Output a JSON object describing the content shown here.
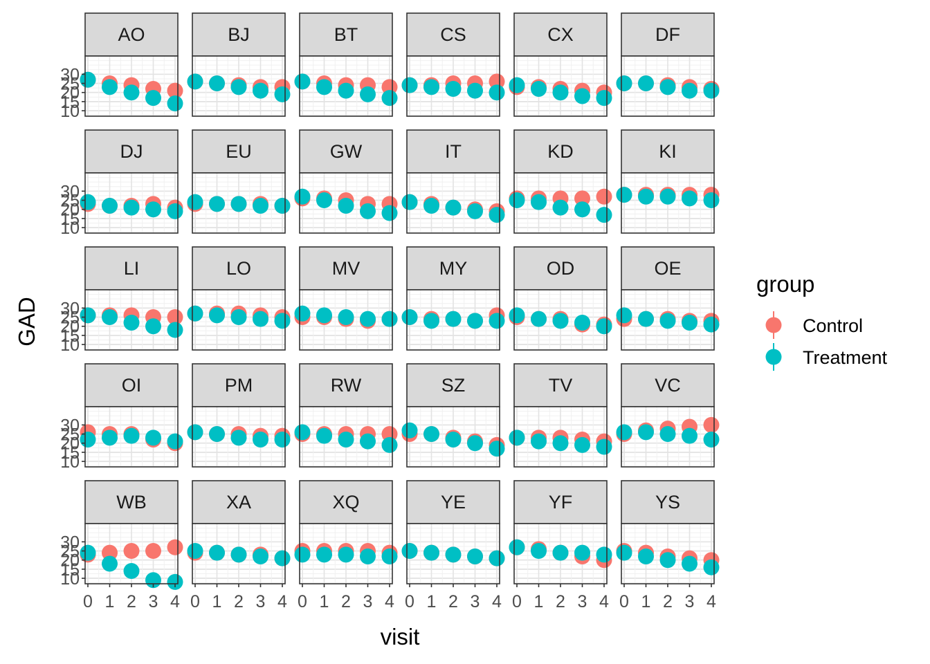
{
  "chart_data": {
    "type": "scatter",
    "xlabel": "visit",
    "ylabel": "GAD",
    "x": [
      0,
      1,
      2,
      3,
      4
    ],
    "x_ticks": [
      "0",
      "1",
      "2",
      "3",
      "4"
    ],
    "y_ticks": [
      "10",
      "15",
      "20",
      "25",
      "30"
    ],
    "ylim": [
      7,
      40
    ],
    "grid": true,
    "legend": {
      "title": "group",
      "position": "right",
      "entries": [
        {
          "name": "Control",
          "color": "#F8766D"
        },
        {
          "name": "Treatment",
          "color": "#00BFC4"
        }
      ]
    },
    "panels": [
      {
        "label": "AO",
        "series": [
          {
            "name": "Control",
            "values": [
              27,
              25,
              24,
              22,
              21
            ]
          },
          {
            "name": "Treatment",
            "values": [
              27,
              23,
              20,
              17,
              14
            ]
          }
        ]
      },
      {
        "label": "BJ",
        "series": [
          {
            "name": "Control",
            "values": [
              26,
              25,
              24,
              23,
              23
            ]
          },
          {
            "name": "Treatment",
            "values": [
              26,
              25,
              23,
              21,
              19
            ]
          }
        ]
      },
      {
        "label": "BT",
        "series": [
          {
            "name": "Control",
            "values": [
              26,
              25,
              24,
              24,
              23
            ]
          },
          {
            "name": "Treatment",
            "values": [
              26,
              23,
              21,
              19,
              17
            ]
          }
        ]
      },
      {
        "label": "CS",
        "series": [
          {
            "name": "Control",
            "values": [
              24,
              24,
              25,
              25,
              26
            ]
          },
          {
            "name": "Treatment",
            "values": [
              24,
              23,
              22,
              21,
              20
            ]
          }
        ]
      },
      {
        "label": "CX",
        "series": [
          {
            "name": "Control",
            "values": [
              23,
              23,
              22,
              21,
              20
            ]
          },
          {
            "name": "Treatment",
            "values": [
              24,
              22,
              20,
              18,
              17
            ]
          }
        ]
      },
      {
        "label": "DF",
        "series": [
          {
            "name": "Control",
            "values": [
              25,
              25,
              24,
              23,
              22
            ]
          },
          {
            "name": "Treatment",
            "values": [
              25,
              25,
              23,
              21,
              21
            ]
          }
        ]
      },
      {
        "label": "DJ",
        "series": [
          {
            "name": "Control",
            "values": [
              23,
              22,
              22,
              23,
              21
            ]
          },
          {
            "name": "Treatment",
            "values": [
              24,
              22,
              21,
              20,
              19
            ]
          }
        ]
      },
      {
        "label": "EU",
        "series": [
          {
            "name": "Control",
            "values": [
              23,
              23,
              23,
              23,
              22
            ]
          },
          {
            "name": "Treatment",
            "values": [
              24,
              23,
              23,
              22,
              22
            ]
          }
        ]
      },
      {
        "label": "GW",
        "series": [
          {
            "name": "Control",
            "values": [
              26,
              26,
              25,
              23,
              23
            ]
          },
          {
            "name": "Treatment",
            "values": [
              27,
              25,
              22,
              19,
              18
            ]
          }
        ]
      },
      {
        "label": "IT",
        "series": [
          {
            "name": "Control",
            "values": [
              24,
              23,
              21,
              20,
              19
            ]
          },
          {
            "name": "Treatment",
            "values": [
              24,
              22,
              21,
              19,
              17
            ]
          }
        ]
      },
      {
        "label": "KD",
        "series": [
          {
            "name": "Control",
            "values": [
              26,
              26,
              26,
              26,
              27
            ]
          },
          {
            "name": "Treatment",
            "values": [
              25,
              24,
              21,
              20,
              17
            ]
          }
        ]
      },
      {
        "label": "KI",
        "series": [
          {
            "name": "Control",
            "values": [
              28,
              28,
              28,
              28,
              28
            ]
          },
          {
            "name": "Treatment",
            "values": [
              28,
              27,
              27,
              26,
              25
            ]
          }
        ]
      },
      {
        "label": "LI",
        "series": [
          {
            "name": "Control",
            "values": [
              26,
              26,
              26,
              25,
              25
            ]
          },
          {
            "name": "Treatment",
            "values": [
              26,
              25,
              22,
              20,
              18
            ]
          }
        ]
      },
      {
        "label": "LO",
        "series": [
          {
            "name": "Control",
            "values": [
              27,
              27,
              27,
              26,
              25
            ]
          },
          {
            "name": "Treatment",
            "values": [
              27,
              26,
              25,
              24,
              23
            ]
          }
        ]
      },
      {
        "label": "MV",
        "series": [
          {
            "name": "Control",
            "values": [
              25,
              25,
              24,
              23,
              24
            ]
          },
          {
            "name": "Treatment",
            "values": [
              27,
              26,
              25,
              24,
              24
            ]
          }
        ]
      },
      {
        "label": "MY",
        "series": [
          {
            "name": "Control",
            "values": [
              25,
              24,
              24,
              23,
              26
            ]
          },
          {
            "name": "Treatment",
            "values": [
              25,
              23,
              24,
              23,
              23
            ]
          }
        ]
      },
      {
        "label": "OD",
        "series": [
          {
            "name": "Control",
            "values": [
              25,
              24,
              24,
              21,
              21
            ]
          },
          {
            "name": "Treatment",
            "values": [
              26,
              24,
              23,
              22,
              20
            ]
          }
        ]
      },
      {
        "label": "OE",
        "series": [
          {
            "name": "Control",
            "values": [
              24,
              24,
              24,
              23,
              23
            ]
          },
          {
            "name": "Treatment",
            "values": [
              26,
              24,
              23,
              22,
              21
            ]
          }
        ]
      },
      {
        "label": "OI",
        "series": [
          {
            "name": "Control",
            "values": [
              26,
              25,
              25,
              22,
              20
            ]
          },
          {
            "name": "Treatment",
            "values": [
              22,
              23,
              24,
              23,
              21
            ]
          }
        ]
      },
      {
        "label": "PM",
        "series": [
          {
            "name": "Control",
            "values": [
              26,
              25,
              25,
              24,
              24
            ]
          },
          {
            "name": "Treatment",
            "values": [
              26,
              25,
              23,
              22,
              22
            ]
          }
        ]
      },
      {
        "label": "RW",
        "series": [
          {
            "name": "Control",
            "values": [
              25,
              25,
              25,
              25,
              25
            ]
          },
          {
            "name": "Treatment",
            "values": [
              26,
              24,
              22,
              21,
              19
            ]
          }
        ]
      },
      {
        "label": "SZ",
        "series": [
          {
            "name": "Control",
            "values": [
              25,
              25,
              23,
              21,
              19
            ]
          },
          {
            "name": "Treatment",
            "values": [
              27,
              25,
              22,
              20,
              17
            ]
          }
        ]
      },
      {
        "label": "TV",
        "series": [
          {
            "name": "Control",
            "values": [
              23,
              23,
              23,
              22,
              21
            ]
          },
          {
            "name": "Treatment",
            "values": [
              23,
              21,
              20,
              19,
              18
            ]
          }
        ]
      },
      {
        "label": "VC",
        "series": [
          {
            "name": "Control",
            "values": [
              25,
              27,
              28,
              29,
              30
            ]
          },
          {
            "name": "Treatment",
            "values": [
              26,
              26,
              25,
              24,
              22
            ]
          }
        ]
      },
      {
        "label": "WB",
        "series": [
          {
            "name": "Control",
            "values": [
              23,
              24,
              25,
              25,
              27
            ]
          },
          {
            "name": "Treatment",
            "values": [
              24,
              18,
              14,
              9,
              8
            ]
          }
        ]
      },
      {
        "label": "XA",
        "series": [
          {
            "name": "Control",
            "values": [
              24,
              24,
              23,
              23,
              21
            ]
          },
          {
            "name": "Treatment",
            "values": [
              25,
              24,
              23,
              22,
              21
            ]
          }
        ]
      },
      {
        "label": "XQ",
        "series": [
          {
            "name": "Control",
            "values": [
              25,
              25,
              25,
              25,
              24
            ]
          },
          {
            "name": "Treatment",
            "values": [
              23,
              23,
              23,
              22,
              22
            ]
          }
        ]
      },
      {
        "label": "YE",
        "series": [
          {
            "name": "Control",
            "values": [
              25,
              24,
              23,
              22,
              21
            ]
          },
          {
            "name": "Treatment",
            "values": [
              25,
              24,
              23,
              22,
              21
            ]
          }
        ]
      },
      {
        "label": "YF",
        "series": [
          {
            "name": "Control",
            "values": [
              27,
              26,
              24,
              22,
              20
            ]
          },
          {
            "name": "Treatment",
            "values": [
              27,
              25,
              24,
              24,
              23
            ]
          }
        ]
      },
      {
        "label": "YS",
        "series": [
          {
            "name": "Control",
            "values": [
              25,
              24,
              22,
              21,
              20
            ]
          },
          {
            "name": "Treatment",
            "values": [
              24,
              22,
              20,
              18,
              16
            ]
          }
        ]
      }
    ]
  }
}
